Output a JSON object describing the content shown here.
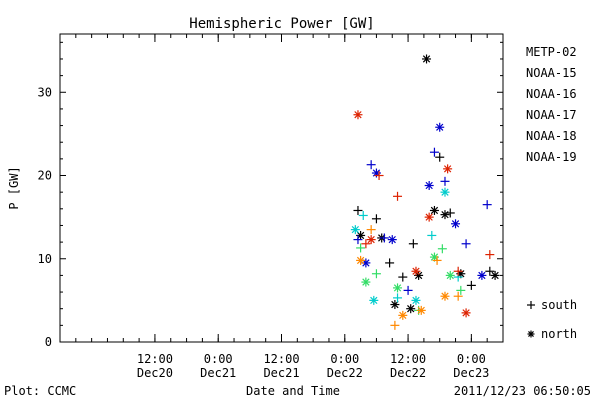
{
  "chart_data": {
    "type": "scatter",
    "title": "Hemispheric Power [GW]",
    "xlabel": "Date and Time",
    "ylabel": "P [GW]",
    "ylim": [
      0,
      37
    ],
    "xlim": [
      "2011-12-19 18:00",
      "2011-12-23 06:00"
    ],
    "y_ticks": [
      "0",
      "10",
      "20",
      "30"
    ],
    "x_ticks": [
      {
        "time": "2011-12-20 12:00",
        "line1": "12:00",
        "line2": "Dec20"
      },
      {
        "time": "2011-12-21 00:00",
        "line1": "0:00",
        "line2": "Dec21"
      },
      {
        "time": "2011-12-21 12:00",
        "line1": "12:00",
        "line2": "Dec21"
      },
      {
        "time": "2011-12-22 00:00",
        "line1": "0:00",
        "line2": "Dec22"
      },
      {
        "time": "2011-12-22 12:00",
        "line1": "12:00",
        "line2": "Dec22"
      },
      {
        "time": "2011-12-23 00:00",
        "line1": "0:00",
        "line2": "Dec23"
      }
    ],
    "legend_position": "right",
    "marker_legend": [
      {
        "symbol": "+",
        "label": "south"
      },
      {
        "symbol": "*",
        "label": "north"
      }
    ],
    "series": [
      {
        "name": "METP-02",
        "color": "#000000",
        "points": [
          {
            "x": "2011-12-22 02:30",
            "y": 15.8,
            "m": "+"
          },
          {
            "x": "2011-12-22 03:00",
            "y": 12.8,
            "m": "*"
          },
          {
            "x": "2011-12-22 06:00",
            "y": 14.8,
            "m": "+"
          },
          {
            "x": "2011-12-22 07:00",
            "y": 12.5,
            "m": "*"
          },
          {
            "x": "2011-12-22 08:30",
            "y": 9.5,
            "m": "+"
          },
          {
            "x": "2011-12-22 09:30",
            "y": 4.5,
            "m": "*"
          },
          {
            "x": "2011-12-22 11:00",
            "y": 7.8,
            "m": "+"
          },
          {
            "x": "2011-12-22 12:30",
            "y": 4.0,
            "m": "*"
          },
          {
            "x": "2011-12-22 13:00",
            "y": 11.8,
            "m": "+"
          },
          {
            "x": "2011-12-22 14:00",
            "y": 8.0,
            "m": "*"
          },
          {
            "x": "2011-12-22 15:30",
            "y": 34.0,
            "m": "*"
          },
          {
            "x": "2011-12-22 17:00",
            "y": 15.8,
            "m": "*"
          },
          {
            "x": "2011-12-22 18:00",
            "y": 22.2,
            "m": "+"
          },
          {
            "x": "2011-12-22 19:00",
            "y": 15.3,
            "m": "*"
          },
          {
            "x": "2011-12-22 20:00",
            "y": 15.5,
            "m": "+"
          },
          {
            "x": "2011-12-22 22:00",
            "y": 8.2,
            "m": "*"
          },
          {
            "x": "2011-12-23 00:00",
            "y": 6.8,
            "m": "+"
          },
          {
            "x": "2011-12-23 03:30",
            "y": 8.5,
            "m": "+"
          },
          {
            "x": "2011-12-23 04:30",
            "y": 8.0,
            "m": "*"
          }
        ]
      },
      {
        "name": "NOAA-15",
        "color": "#0000cc",
        "points": [
          {
            "x": "2011-12-22 02:30",
            "y": 12.3,
            "m": "+"
          },
          {
            "x": "2011-12-22 04:00",
            "y": 9.5,
            "m": "*"
          },
          {
            "x": "2011-12-22 05:00",
            "y": 21.3,
            "m": "+"
          },
          {
            "x": "2011-12-22 06:00",
            "y": 20.3,
            "m": "*"
          },
          {
            "x": "2011-12-22 07:30",
            "y": 12.5,
            "m": "+"
          },
          {
            "x": "2011-12-22 09:00",
            "y": 12.3,
            "m": "*"
          },
          {
            "x": "2011-12-22 12:00",
            "y": 6.2,
            "m": "+"
          },
          {
            "x": "2011-12-22 16:00",
            "y": 18.8,
            "m": "*"
          },
          {
            "x": "2011-12-22 17:00",
            "y": 22.8,
            "m": "+"
          },
          {
            "x": "2011-12-22 18:00",
            "y": 25.8,
            "m": "*"
          },
          {
            "x": "2011-12-22 19:00",
            "y": 19.3,
            "m": "+"
          },
          {
            "x": "2011-12-22 21:00",
            "y": 14.2,
            "m": "*"
          },
          {
            "x": "2011-12-22 23:00",
            "y": 11.8,
            "m": "+"
          },
          {
            "x": "2011-12-23 02:00",
            "y": 8.0,
            "m": "*"
          },
          {
            "x": "2011-12-23 03:00",
            "y": 16.5,
            "m": "+"
          }
        ]
      },
      {
        "name": "NOAA-16",
        "color": "#00cccc",
        "points": [
          {
            "x": "2011-12-22 02:00",
            "y": 13.5,
            "m": "*"
          },
          {
            "x": "2011-12-22 03:30",
            "y": 15.2,
            "m": "+"
          },
          {
            "x": "2011-12-22 05:30",
            "y": 5.0,
            "m": "*"
          },
          {
            "x": "2011-12-22 10:00",
            "y": 5.3,
            "m": "+"
          },
          {
            "x": "2011-12-22 13:30",
            "y": 5.0,
            "m": "*"
          },
          {
            "x": "2011-12-22 16:30",
            "y": 12.8,
            "m": "+"
          },
          {
            "x": "2011-12-22 19:00",
            "y": 18.0,
            "m": "*"
          },
          {
            "x": "2011-12-22 21:30",
            "y": 7.8,
            "m": "+"
          }
        ]
      },
      {
        "name": "NOAA-17",
        "color": "#33dd66",
        "points": [
          {
            "x": "2011-12-22 03:00",
            "y": 11.3,
            "m": "+"
          },
          {
            "x": "2011-12-22 04:00",
            "y": 7.2,
            "m": "*"
          },
          {
            "x": "2011-12-22 06:00",
            "y": 8.2,
            "m": "+"
          },
          {
            "x": "2011-12-22 10:00",
            "y": 6.5,
            "m": "*"
          },
          {
            "x": "2011-12-22 14:00",
            "y": 3.8,
            "m": "+"
          },
          {
            "x": "2011-12-22 17:00",
            "y": 10.2,
            "m": "*"
          },
          {
            "x": "2011-12-22 18:30",
            "y": 11.2,
            "m": "+"
          },
          {
            "x": "2011-12-22 20:00",
            "y": 8.0,
            "m": "*"
          },
          {
            "x": "2011-12-22 22:00",
            "y": 6.2,
            "m": "+"
          }
        ]
      },
      {
        "name": "NOAA-18",
        "color": "#ff8800",
        "points": [
          {
            "x": "2011-12-22 03:00",
            "y": 9.8,
            "m": "*"
          },
          {
            "x": "2011-12-22 05:00",
            "y": 13.5,
            "m": "+"
          },
          {
            "x": "2011-12-22 09:30",
            "y": 2.0,
            "m": "+"
          },
          {
            "x": "2011-12-22 11:00",
            "y": 3.2,
            "m": "*"
          },
          {
            "x": "2011-12-22 14:30",
            "y": 3.8,
            "m": "*"
          },
          {
            "x": "2011-12-22 17:30",
            "y": 9.8,
            "m": "+"
          },
          {
            "x": "2011-12-22 19:00",
            "y": 5.5,
            "m": "*"
          },
          {
            "x": "2011-12-22 21:30",
            "y": 5.5,
            "m": "+"
          }
        ]
      },
      {
        "name": "NOAA-19",
        "color": "#dd2200",
        "points": [
          {
            "x": "2011-12-22 02:30",
            "y": 27.3,
            "m": "*"
          },
          {
            "x": "2011-12-22 04:00",
            "y": 11.8,
            "m": "+"
          },
          {
            "x": "2011-12-22 05:00",
            "y": 12.3,
            "m": "*"
          },
          {
            "x": "2011-12-22 06:30",
            "y": 20.0,
            "m": "+"
          },
          {
            "x": "2011-12-22 10:00",
            "y": 17.5,
            "m": "+"
          },
          {
            "x": "2011-12-22 13:30",
            "y": 8.5,
            "m": "*"
          },
          {
            "x": "2011-12-22 16:00",
            "y": 15.0,
            "m": "*"
          },
          {
            "x": "2011-12-22 19:30",
            "y": 20.8,
            "m": "*"
          },
          {
            "x": "2011-12-22 21:30",
            "y": 8.5,
            "m": "+"
          },
          {
            "x": "2011-12-22 23:00",
            "y": 3.5,
            "m": "*"
          },
          {
            "x": "2011-12-23 03:30",
            "y": 10.5,
            "m": "+"
          }
        ]
      }
    ]
  },
  "footer": {
    "credit": "Plot: CCMC",
    "timestamp": "2011/12/23 06:50:05"
  }
}
